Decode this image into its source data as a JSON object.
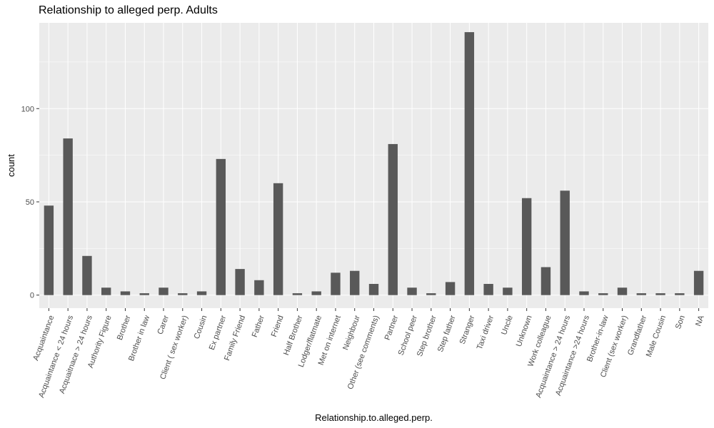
{
  "chart_data": {
    "type": "bar",
    "title": "Relationship to alleged perp. Adults",
    "xlabel": "Relationship.to.alleged.perp.",
    "ylabel": "count",
    "ylim": [
      -7,
      146
    ],
    "yticks": [
      0,
      50,
      100
    ],
    "grid": true,
    "colors": {
      "panel": "#ebebeb",
      "grid_major": "#ffffff",
      "bar": "#595959",
      "tick_text": "#4d4d4d",
      "tick_mark": "#333333"
    },
    "categories": [
      "Acquaintance",
      "Acquaintance < 24 hours",
      "Acquaitnace > 24 hours",
      "Authority Figure",
      "Brother",
      "Brother in law",
      "Carer",
      "Client ( sex worker)",
      "Cousin",
      "Ex partner",
      "Family Friend",
      "Father",
      "Friend",
      "Half Brother",
      "Lodger/flatmate",
      "Met on internet",
      "Neighbour",
      "Other (see comments)",
      "Partner",
      "School peer",
      "Step brother",
      "Step father",
      "Stranger",
      "Taxi driver",
      "Uncle",
      "Unknown",
      "Work colleague",
      "Acquaintance > 24 hours",
      "Acquaintance >24 hours",
      "Brother-in-law",
      "Client (sex worker)",
      "Grandfather",
      "Male Cousin",
      "Son",
      "NA"
    ],
    "values": [
      48,
      84,
      21,
      4,
      2,
      1,
      4,
      1,
      2,
      73,
      14,
      8,
      60,
      1,
      2,
      12,
      13,
      6,
      81,
      4,
      1,
      7,
      141,
      6,
      4,
      52,
      15,
      56,
      2,
      1,
      4,
      1,
      1,
      1,
      13
    ]
  }
}
